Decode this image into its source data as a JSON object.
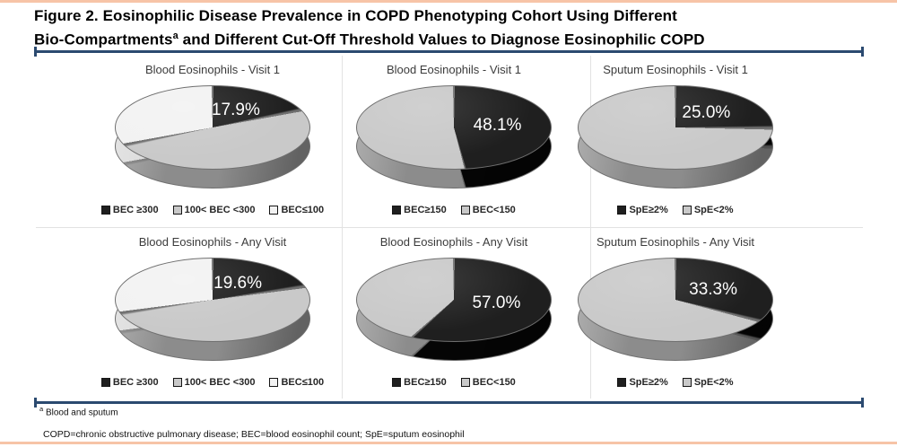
{
  "colors": {
    "accent_bar": "#f7c4a7",
    "rule": "#2b4a70",
    "panel_border": "#e2e2e2",
    "slice_black": "#1f1f1f",
    "slice_gray": "#c9c9c9",
    "slice_white": "#f2f2f2"
  },
  "figure": {
    "title_line1": "Figure 2. Eosinophilic Disease Prevalence in COPD Phenotyping Cohort Using Different",
    "title_line2_pre": "Bio-Compartments",
    "title_sup": "a",
    "title_line2_post": " and Different Cut-Off Threshold Values to Diagnose Eosinophilic COPD",
    "footnote_sup": "a",
    "footnote_text": " Blood and sputum",
    "abbreviations": "COPD=chronic obstructive pulmonary disease; BEC=blood eosinophil count; SpE=sputum eosinophil"
  },
  "chart_data": [
    {
      "type": "pie",
      "title": "Blood Eosinophils - Visit 1",
      "data_label": "17.9%",
      "labeled_slice": "BEC ≥300",
      "start_angle_deg": 0,
      "direction": "clockwise",
      "legend_position": "bottom",
      "slices": [
        {
          "name": "BEC ≥300",
          "value": 17.9,
          "color": "#1f1f1f",
          "side_color": "#050505"
        },
        {
          "name": "100< BEC <300",
          "value": 50.0,
          "color": "#c9c9c9",
          "side_color": "#8c8c8c"
        },
        {
          "name": "BEC≤100",
          "value": 32.1,
          "color": "#f2f2f2",
          "side_color": "#d8d8d8"
        }
      ]
    },
    {
      "type": "pie",
      "title": "Blood Eosinophils - Visit 1",
      "data_label": "48.1%",
      "labeled_slice": "BEC≥150",
      "start_angle_deg": 0,
      "direction": "clockwise",
      "legend_position": "bottom",
      "slices": [
        {
          "name": "BEC≥150",
          "value": 48.1,
          "color": "#1f1f1f",
          "side_color": "#050505"
        },
        {
          "name": "BEC<150",
          "value": 51.9,
          "color": "#c9c9c9",
          "side_color": "#8c8c8c"
        }
      ]
    },
    {
      "type": "pie",
      "title": "Sputum Eosinophils - Visit 1",
      "data_label": "25.0%",
      "labeled_slice": "SpE≥2%",
      "start_angle_deg": 0,
      "direction": "clockwise",
      "legend_position": "bottom",
      "slices": [
        {
          "name": "SpE≥2%",
          "value": 25.0,
          "color": "#1f1f1f",
          "side_color": "#050505"
        },
        {
          "name": "SpE<2%",
          "value": 75.0,
          "color": "#c9c9c9",
          "side_color": "#8c8c8c"
        }
      ]
    },
    {
      "type": "pie",
      "title": "Blood Eosinophils - Any Visit",
      "data_label": "19.6%",
      "labeled_slice": "BEC ≥300",
      "start_angle_deg": 0,
      "direction": "clockwise",
      "legend_position": "bottom",
      "slices": [
        {
          "name": "BEC ≥300",
          "value": 19.6,
          "color": "#1f1f1f",
          "side_color": "#050505"
        },
        {
          "name": "100< BEC <300",
          "value": 50.0,
          "color": "#c9c9c9",
          "side_color": "#8c8c8c"
        },
        {
          "name": "BEC≤100",
          "value": 30.4,
          "color": "#f2f2f2",
          "side_color": "#d8d8d8"
        }
      ]
    },
    {
      "type": "pie",
      "title": "Blood Eosinophils - Any Visit",
      "data_label": "57.0%",
      "labeled_slice": "BEC≥150",
      "start_angle_deg": 0,
      "direction": "clockwise",
      "legend_position": "bottom",
      "slices": [
        {
          "name": "BEC≥150",
          "value": 57.0,
          "color": "#1f1f1f",
          "side_color": "#050505"
        },
        {
          "name": "BEC<150",
          "value": 43.0,
          "color": "#c9c9c9",
          "side_color": "#8c8c8c"
        }
      ]
    },
    {
      "type": "pie",
      "title": "Sputum Eosinophils - Any Visit",
      "data_label": "33.3%",
      "labeled_slice": "SpE≥2%",
      "start_angle_deg": 0,
      "direction": "clockwise",
      "legend_position": "bottom",
      "slices": [
        {
          "name": "SpE≥2%",
          "value": 33.3,
          "color": "#1f1f1f",
          "side_color": "#050505"
        },
        {
          "name": "SpE<2%",
          "value": 66.7,
          "color": "#c9c9c9",
          "side_color": "#8c8c8c"
        }
      ]
    }
  ]
}
